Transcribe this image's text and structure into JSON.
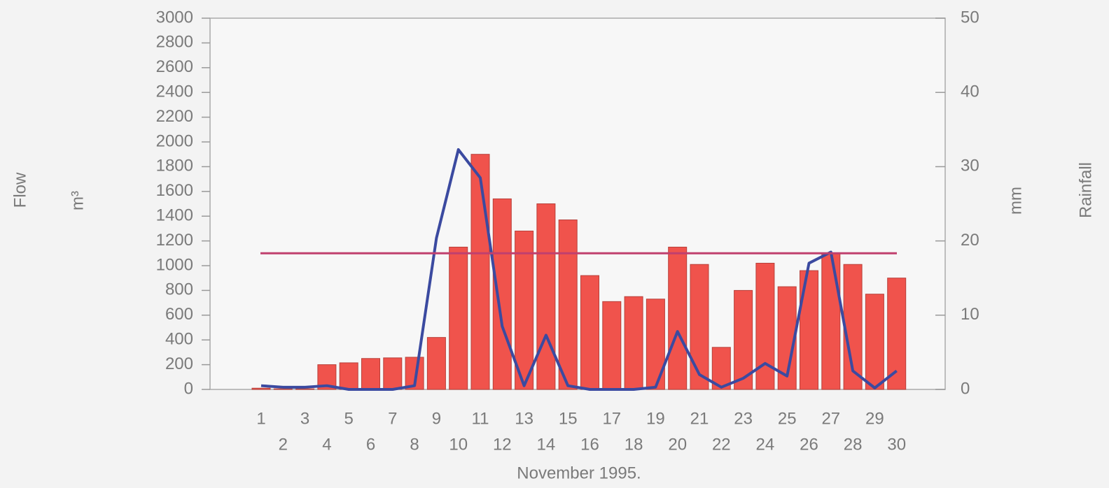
{
  "chart_data": {
    "type": "bar_line",
    "x_label": "November 1995.",
    "y_label": "Flow",
    "y_unit": "m³",
    "y2_label": "Rainfall",
    "y2_unit": "mm",
    "categories": [
      "1",
      "2",
      "3",
      "4",
      "5",
      "6",
      "7",
      "8",
      "9",
      "10",
      "11",
      "12",
      "13",
      "14",
      "15",
      "16",
      "17",
      "18",
      "19",
      "20",
      "21",
      "22",
      "23",
      "24",
      "25",
      "26",
      "27",
      "28",
      "29",
      "30"
    ],
    "series": [
      {
        "type": "bar",
        "axis": "y",
        "color": "#f0534c",
        "values": [
          10,
          5,
          5,
          200,
          215,
          250,
          255,
          260,
          420,
          1150,
          1900,
          1540,
          1280,
          1500,
          1370,
          920,
          710,
          750,
          730,
          1150,
          1010,
          340,
          800,
          1020,
          830,
          960,
          1100,
          1010,
          770,
          900
        ]
      },
      {
        "type": "line",
        "axis": "y2",
        "color": "#3b4aa0",
        "values": [
          0.5,
          0.3,
          0.3,
          0.5,
          0,
          0,
          0,
          0.5,
          20.4,
          32.3,
          28.5,
          8.5,
          0.5,
          7.3,
          0.5,
          0,
          0,
          0,
          0.3,
          7.8,
          2,
          0.3,
          1.5,
          3.5,
          1.8,
          17,
          18.5,
          2.5,
          0.2,
          2.5
        ]
      }
    ],
    "hline": {
      "value": 1100,
      "axis": "y",
      "color": "#c0406e"
    },
    "ylim": [
      0,
      3000
    ],
    "yticks": [
      0,
      200,
      400,
      600,
      800,
      1000,
      1200,
      1400,
      1600,
      1800,
      2000,
      2200,
      2400,
      2600,
      2800,
      3000
    ],
    "y2lim": [
      0,
      50
    ],
    "y2ticks": [
      0,
      10,
      20,
      30,
      40,
      50
    ]
  }
}
